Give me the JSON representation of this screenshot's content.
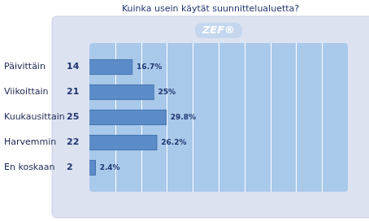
{
  "chart_data": {
    "type": "bar",
    "title": "Kuinka usein käytät suunnittelualuetta?",
    "logo_text": "ZEF®",
    "orientation": "horizontal",
    "categories": [
      "Päivittäin",
      "Viikoittain",
      "Kuukausittain",
      "Harvemmin",
      "En koskaan"
    ],
    "values": [
      16.7,
      25,
      29.8,
      26.2,
      2.4
    ],
    "value_labels": [
      "16.7%",
      "25%",
      "29.8%",
      "26.2%",
      "2.4%"
    ],
    "counts": [
      14,
      21,
      25,
      22,
      2
    ],
    "color": "#5b8cc8",
    "xlim": [
      0,
      100
    ],
    "xticks": [
      0,
      10,
      20,
      30,
      40,
      50,
      60,
      70,
      80,
      90,
      100
    ],
    "grid": true,
    "tick_labels": false,
    "data_labels": true
  }
}
